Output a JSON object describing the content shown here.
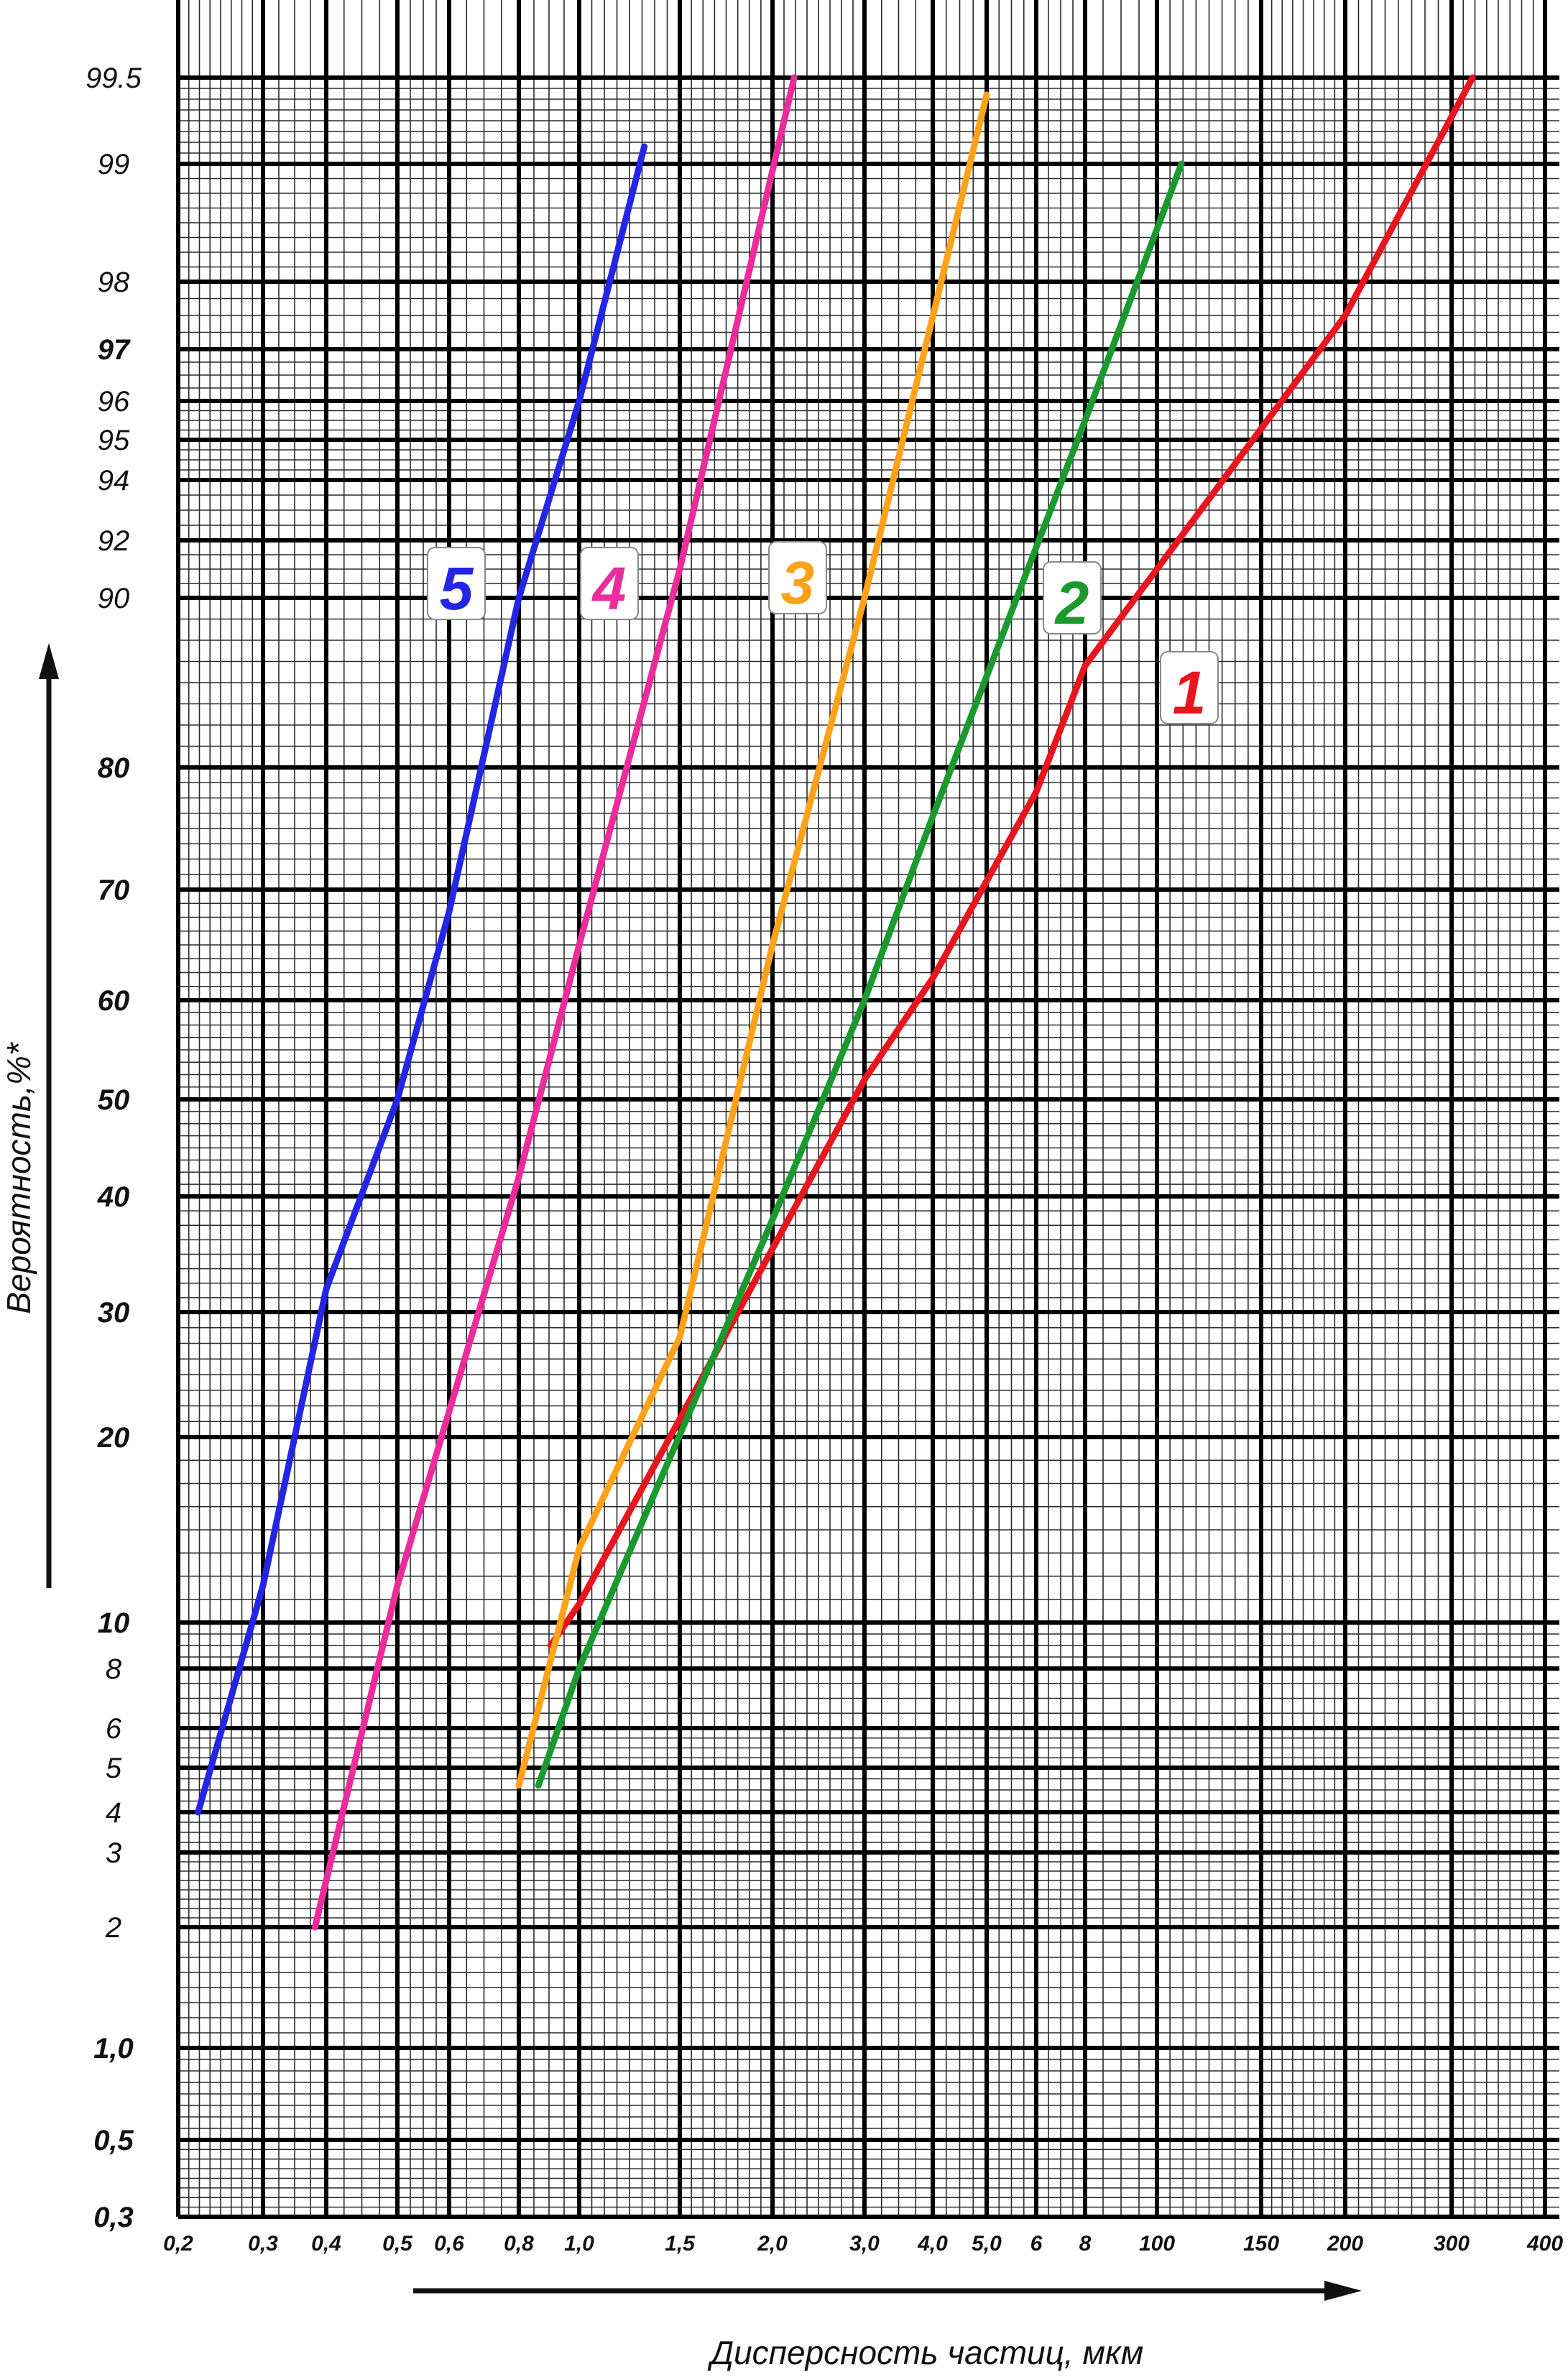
{
  "chart_data": {
    "type": "line",
    "title": "",
    "xlabel": "Дисперсность частиц, мкм",
    "ylabel": "Вероятность,%*",
    "x_scale": "log (segmented)",
    "y_scale": "probability",
    "grid": true,
    "x_tick_labels": [
      "0,2",
      "0,3",
      "0,4",
      "0,5",
      "0,6",
      "0,8",
      "1,0",
      "1,5",
      "2,0",
      "3,0",
      "4,0",
      "5,0",
      "6",
      "8",
      "100",
      "150",
      "200",
      "300",
      "400"
    ],
    "y_tick_labels": [
      "0,3",
      "0,5",
      "1,0",
      "2",
      "3",
      "4",
      "5",
      "6",
      "8",
      "10",
      "20",
      "30",
      "40",
      "50",
      "60",
      "70",
      "80",
      "90",
      "92",
      "94",
      "95",
      "96",
      "97",
      "98",
      "99",
      "99.5"
    ],
    "series": [
      {
        "name": "1",
        "color": "#e8141e",
        "points": [
          [
            0.9,
            9
          ],
          [
            1.0,
            11
          ],
          [
            3.0,
            52
          ],
          [
            4.0,
            62
          ],
          [
            6,
            78
          ],
          [
            8,
            86
          ],
          [
            100,
            91
          ],
          [
            200,
            97.5
          ],
          [
            320,
            99.5
          ]
        ]
      },
      {
        "name": "2",
        "color": "#1a9a2e",
        "points": [
          [
            0.86,
            4.6
          ],
          [
            1.0,
            8
          ],
          [
            2.0,
            38
          ],
          [
            3.0,
            60
          ],
          [
            4.0,
            76
          ],
          [
            8,
            95.5
          ],
          [
            110,
            99
          ]
        ]
      },
      {
        "name": "3",
        "color": "#ffa21a",
        "points": [
          [
            0.8,
            4.6
          ],
          [
            1.0,
            14
          ],
          [
            1.5,
            28
          ],
          [
            2.0,
            65
          ],
          [
            3.0,
            90
          ],
          [
            5.0,
            99.4
          ]
        ]
      },
      {
        "name": "4",
        "color": "#ec2b9c",
        "points": [
          [
            0.38,
            2
          ],
          [
            0.5,
            12
          ],
          [
            0.8,
            42
          ],
          [
            1.0,
            65
          ],
          [
            1.5,
            91
          ],
          [
            2.2,
            99.5
          ]
        ]
      },
      {
        "name": "5",
        "color": "#2525e6",
        "points": [
          [
            0.22,
            4
          ],
          [
            0.3,
            12
          ],
          [
            0.4,
            32
          ],
          [
            0.5,
            50
          ],
          [
            0.6,
            68
          ],
          [
            0.8,
            90
          ],
          [
            1.0,
            96
          ],
          [
            1.3,
            99.1
          ]
        ]
      }
    ]
  }
}
